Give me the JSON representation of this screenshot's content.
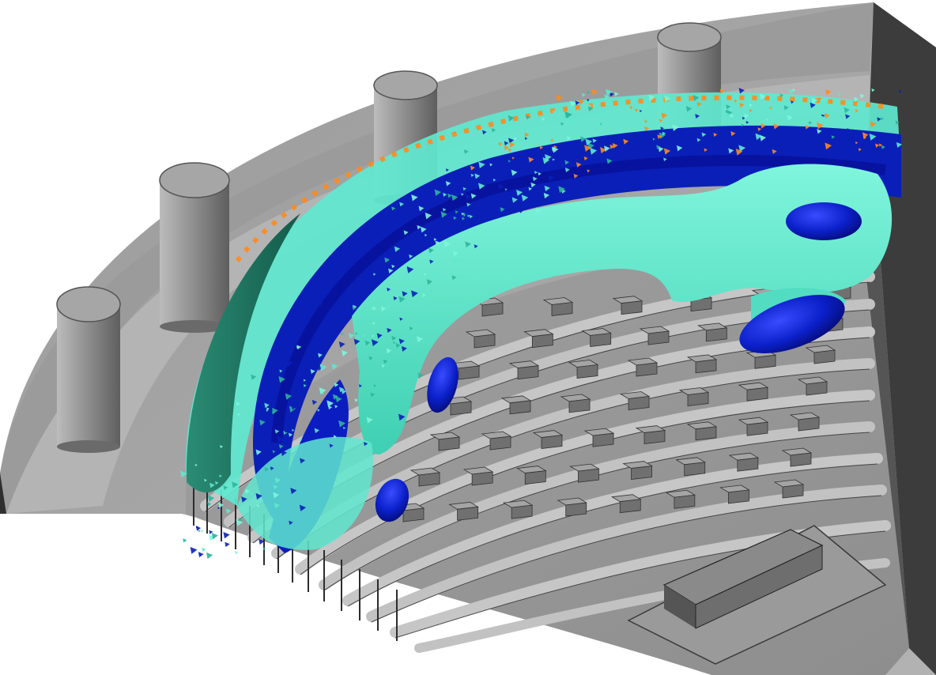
{
  "scene": {
    "colors": {
      "background": "#ffffff",
      "room_top": "#a8a8a8",
      "room_wall_outer": "#8f8f8f",
      "room_wall_right": "#3a3a3a",
      "floor": "#9c9c9c",
      "tier_face": "#bcbcbc",
      "seat_top": "#a9a9a9",
      "seat_front": "#6e6e6e",
      "column_body": "#8c8c8c",
      "podium": "#5e5e5e",
      "plume_cyan": "#5fe8cf",
      "plume_teal": "#1f7a66",
      "plume_blue": "#0a1fb8",
      "plume_blue_dark": "#061099",
      "plume_orange": "#ff8a1c"
    },
    "objects": {
      "columns": 4,
      "seat_rows": 7,
      "blue_blobs": 4
    }
  }
}
